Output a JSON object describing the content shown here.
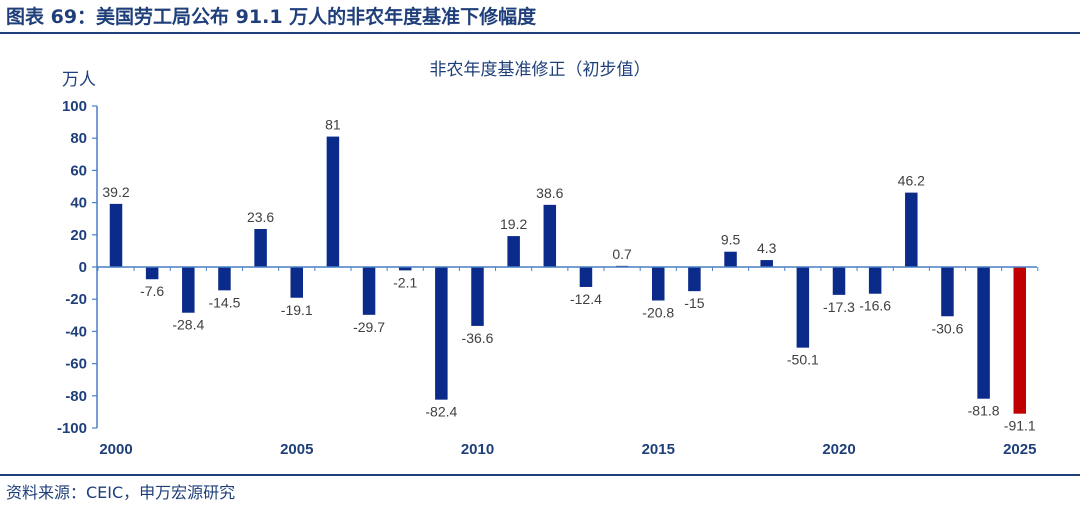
{
  "header": {
    "figure_title": "图表 69：美国劳工局公布 91.1 万人的非农年度基准下修幅度"
  },
  "footer": {
    "source": "资料来源：CEIC，申万宏源研究"
  },
  "colors": {
    "bar": "#0a2b8a",
    "highlight": "#c00000",
    "text": "#1f3f7a"
  },
  "chart_data": {
    "type": "bar",
    "title": "非农年度基准修正（初步值）",
    "ylabel": "万人",
    "xlabel": "",
    "ylim": [
      -100,
      100
    ],
    "yticks": [
      100,
      80,
      60,
      40,
      20,
      0,
      -20,
      -40,
      -60,
      -80,
      -100
    ],
    "xticks": [
      2000,
      2005,
      2010,
      2015,
      2020,
      2025
    ],
    "categories": [
      2000,
      2001,
      2002,
      2003,
      2004,
      2005,
      2006,
      2007,
      2008,
      2009,
      2010,
      2011,
      2012,
      2013,
      2014,
      2015,
      2016,
      2017,
      2018,
      2019,
      2020,
      2021,
      2022,
      2023,
      2024,
      2025
    ],
    "values": [
      39.2,
      -7.6,
      -28.4,
      -14.5,
      23.6,
      -19.1,
      81,
      -29.7,
      -2.1,
      -82.4,
      -36.6,
      19.2,
      38.6,
      -12.4,
      0.7,
      -20.8,
      -15,
      9.5,
      4.3,
      -50.1,
      -17.3,
      -16.6,
      46.2,
      -30.6,
      -81.8,
      -91.1
    ],
    "labels": [
      "39.2",
      "-7.6",
      "-28.4",
      "-14.5",
      "23.6",
      "-19.1",
      "81",
      "-29.7",
      "-2.1",
      "-82.4",
      "-36.6",
      "19.2",
      "38.6",
      "-12.4",
      "0.7",
      "-20.8",
      "-15",
      "9.5",
      "4.3",
      "-50.1",
      "-17.3",
      "-16.6",
      "46.2",
      "-30.6",
      "-81.8",
      "-91.1"
    ],
    "highlight_category": 2025,
    "grid": false,
    "legend": "none"
  }
}
